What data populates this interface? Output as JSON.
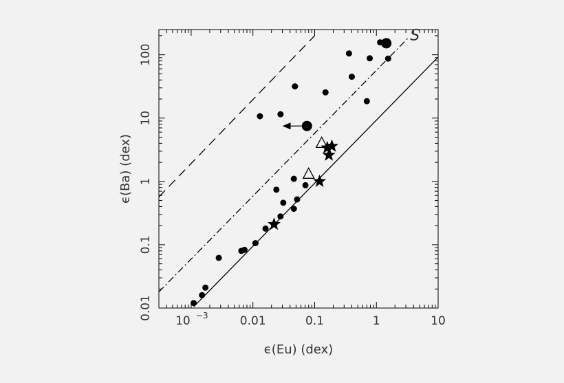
{
  "chart_data": {
    "type": "scatter",
    "title": "",
    "xlabel": "ϵ(Eu) (dex)",
    "ylabel": "ϵ(Ba) (dex)",
    "xscale": "log",
    "yscale": "log",
    "xlim": [
      0.0003,
      10
    ],
    "ylim": [
      0.01,
      250
    ],
    "x_ticks": [
      {
        "value": 0.001,
        "base": "10",
        "exp": "−3"
      },
      {
        "value": 0.01,
        "text": "0.01"
      },
      {
        "value": 0.1,
        "text": "0.1"
      },
      {
        "value": 1,
        "text": "1"
      },
      {
        "value": 10,
        "text": "10"
      }
    ],
    "y_ticks": [
      {
        "value": 0.01,
        "text": "0.01"
      },
      {
        "value": 0.1,
        "text": "0.1"
      },
      {
        "value": 1,
        "text": "1"
      },
      {
        "value": 10,
        "text": "10"
      },
      {
        "value": 100,
        "text": "100"
      }
    ],
    "grid": false,
    "ink_color": "#000000",
    "series": [
      {
        "marker": "filled-circle",
        "points": [
          [
            0.0011,
            0.012
          ],
          [
            0.0015,
            0.016
          ],
          [
            0.0017,
            0.021
          ],
          [
            0.0028,
            0.062
          ],
          [
            0.0065,
            0.08
          ],
          [
            0.0073,
            0.083
          ],
          [
            0.011,
            0.106
          ],
          [
            0.016,
            0.18
          ],
          [
            0.024,
            0.74
          ],
          [
            0.028,
            0.28
          ],
          [
            0.031,
            0.46
          ],
          [
            0.046,
            0.37
          ],
          [
            0.046,
            1.1
          ],
          [
            0.052,
            0.52
          ],
          [
            0.071,
            0.87
          ],
          [
            0.013,
            10.7
          ],
          [
            0.028,
            11.5
          ],
          [
            0.048,
            31.7
          ],
          [
            0.15,
            25.5
          ],
          [
            0.36,
            105
          ],
          [
            0.4,
            45
          ],
          [
            0.7,
            18.5
          ],
          [
            0.78,
            88
          ],
          [
            1.15,
            157
          ],
          [
            1.55,
            87
          ]
        ]
      },
      {
        "marker": "large-filled-circle",
        "points": [
          [
            1.45,
            152
          ],
          [
            0.075,
            7.5
          ]
        ]
      },
      {
        "marker": "star",
        "points": [
          [
            0.022,
            0.21
          ],
          [
            0.12,
            1.0
          ],
          [
            0.17,
            2.6
          ],
          [
            0.16,
            3.4
          ],
          [
            0.19,
            3.6
          ]
        ]
      },
      {
        "marker": "open-triangle",
        "points": [
          [
            0.08,
            1.3
          ],
          [
            0.13,
            4.0
          ]
        ]
      }
    ],
    "upper_limit_arrows": [
      {
        "from": [
          0.075,
          7.5
        ],
        "to": [
          0.03,
          7.5
        ]
      }
    ],
    "lines": [
      {
        "style": "solid",
        "points": [
          [
            0.0011,
            0.0105
          ],
          [
            10,
            92
          ]
        ]
      },
      {
        "style": "dash-dot",
        "points": [
          [
            0.0003,
            0.018
          ],
          [
            3.2,
            180
          ]
        ]
      },
      {
        "style": "dashed",
        "points": [
          [
            0.0003,
            0.57
          ],
          [
            0.1,
            200
          ]
        ]
      }
    ],
    "annotations": [
      {
        "text": "S",
        "x": 4.2,
        "y": 170
      }
    ]
  }
}
